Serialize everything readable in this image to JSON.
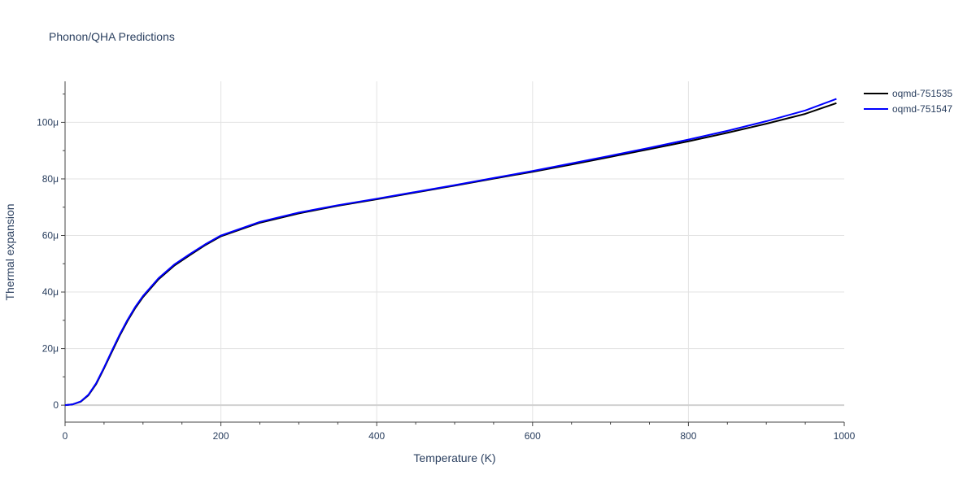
{
  "chart_data": {
    "type": "line",
    "title": "Phonon/QHA Predictions",
    "xlabel": "Temperature (K)",
    "ylabel": "Thermal expansion",
    "xlim": [
      0,
      1000
    ],
    "ylim": [
      -6e-06,
      0.0001145
    ],
    "x_ticks": [
      0,
      200,
      400,
      600,
      800,
      1000
    ],
    "x_tick_labels": [
      "0",
      "200",
      "400",
      "600",
      "800",
      "1000"
    ],
    "y_ticks": [
      0,
      2e-05,
      4e-05,
      6e-05,
      8e-05,
      0.0001
    ],
    "y_tick_labels": [
      "0",
      "20μ",
      "40μ",
      "60μ",
      "80μ",
      "100μ"
    ],
    "grid": true,
    "legend_position": "top-right",
    "series": [
      {
        "name": "oqmd-751535",
        "color": "#000000",
        "x": [
          0,
          10,
          20,
          30,
          40,
          50,
          60,
          70,
          80,
          90,
          100,
          120,
          140,
          160,
          180,
          200,
          250,
          300,
          350,
          400,
          450,
          500,
          550,
          600,
          650,
          700,
          750,
          800,
          850,
          900,
          950,
          990
        ],
        "y": [
          0,
          3e-07,
          1.2e-06,
          3.5e-06,
          7.5e-06,
          1.3e-05,
          1.88e-05,
          2.45e-05,
          2.97e-05,
          3.43e-05,
          3.82e-05,
          4.45e-05,
          4.93e-05,
          5.3e-05,
          5.66e-05,
          5.97e-05,
          6.45e-05,
          6.78e-05,
          7.05e-05,
          7.28e-05,
          7.52e-05,
          7.76e-05,
          8.01e-05,
          8.25e-05,
          8.51e-05,
          8.78e-05,
          9.05e-05,
          9.33e-05,
          9.63e-05,
          9.95e-05,
          0.000103,
          0.0001068
        ]
      },
      {
        "name": "oqmd-751547",
        "color": "#0000ff",
        "x": [
          0,
          10,
          20,
          30,
          40,
          50,
          60,
          70,
          80,
          90,
          100,
          120,
          140,
          160,
          180,
          200,
          250,
          300,
          350,
          400,
          450,
          500,
          550,
          600,
          650,
          700,
          750,
          800,
          850,
          900,
          950,
          990
        ],
        "y": [
          0,
          3e-07,
          1.3e-06,
          3.7e-06,
          7.8e-06,
          1.33e-05,
          1.92e-05,
          2.49e-05,
          3.01e-05,
          3.47e-05,
          3.86e-05,
          4.49e-05,
          4.97e-05,
          5.34e-05,
          5.69e-05,
          6e-05,
          6.48e-05,
          6.81e-05,
          7.07e-05,
          7.3e-05,
          7.54e-05,
          7.78e-05,
          8.03e-05,
          8.28e-05,
          8.55e-05,
          8.82e-05,
          9.1e-05,
          9.39e-05,
          9.7e-05,
          0.0001004,
          0.0001042,
          0.0001083
        ]
      }
    ]
  }
}
